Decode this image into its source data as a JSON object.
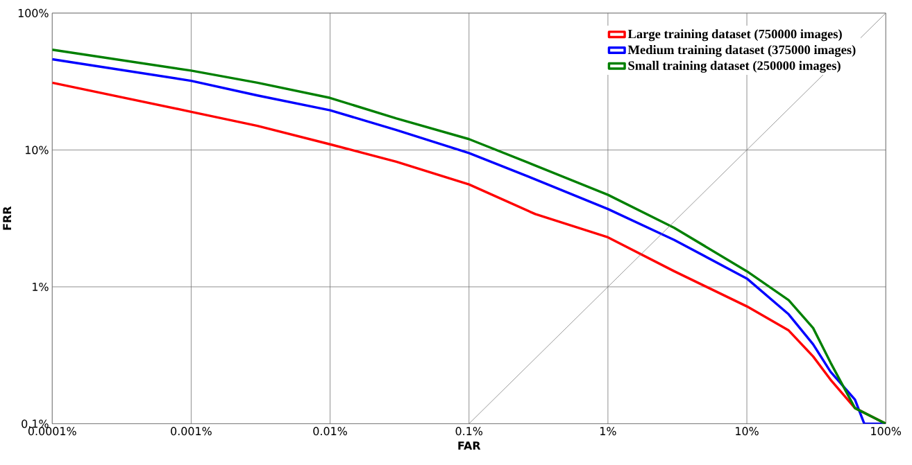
{
  "chart_data": {
    "type": "line",
    "xlabel": "FAR",
    "ylabel": "FRR",
    "log": "xy",
    "grid": true,
    "legend": "top right",
    "xlim": [
      0.0001,
      100
    ],
    "ylim": [
      0.1,
      100
    ],
    "xticks": [
      {
        "value": 0.0001,
        "label": "0.0001%"
      },
      {
        "value": 0.001,
        "label": "0.001%"
      },
      {
        "value": 0.01,
        "label": "0.01%"
      },
      {
        "value": 0.1,
        "label": "0.1%"
      },
      {
        "value": 1,
        "label": "1%"
      },
      {
        "value": 10,
        "label": "10%"
      },
      {
        "value": 100,
        "label": "100%"
      }
    ],
    "yticks": [
      {
        "value": 0.1,
        "label": "0.1%"
      },
      {
        "value": 1,
        "label": "1%"
      },
      {
        "value": 10,
        "label": "10%"
      },
      {
        "value": 100,
        "label": "100%"
      }
    ],
    "series": [
      {
        "name": "Large training dataset (750000 images)",
        "color": "#ff0000",
        "x": [
          0.0001,
          0.001,
          0.003,
          0.01,
          0.03,
          0.1,
          0.3,
          1,
          3,
          10,
          20,
          30,
          40,
          60,
          100
        ],
        "values": [
          31,
          19,
          15,
          11,
          8.2,
          5.6,
          3.4,
          2.3,
          1.3,
          0.72,
          0.48,
          0.31,
          0.21,
          0.13,
          0.1
        ]
      },
      {
        "name": "Medium training dataset (375000 images)",
        "color": "#0000ff",
        "x": [
          0.0001,
          0.001,
          0.003,
          0.01,
          0.03,
          0.1,
          0.3,
          1,
          3,
          10,
          20,
          30,
          40,
          60,
          70,
          100
        ],
        "values": [
          46,
          32,
          25,
          19.5,
          14,
          9.5,
          6.1,
          3.7,
          2.2,
          1.15,
          0.63,
          0.38,
          0.24,
          0.15,
          0.1,
          0.1
        ]
      },
      {
        "name": "Small training dataset (250000 images)",
        "color": "#008000",
        "x": [
          0.0001,
          0.001,
          0.003,
          0.01,
          0.03,
          0.1,
          0.3,
          1,
          3,
          10,
          20,
          30,
          40,
          60,
          100
        ],
        "values": [
          54,
          38,
          31,
          24,
          17,
          12,
          7.7,
          4.7,
          2.7,
          1.3,
          0.8,
          0.5,
          0.28,
          0.13,
          0.1
        ]
      },
      {
        "type": "line",
        "color": "#808080",
        "x": [
          0.1,
          100
        ],
        "values": [
          0.1,
          100
        ]
      }
    ]
  }
}
